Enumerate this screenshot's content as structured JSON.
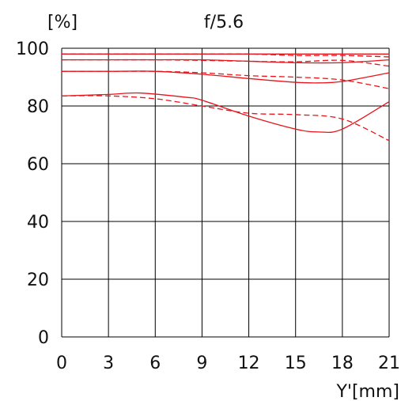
{
  "chart_data": {
    "type": "line",
    "title": "f/5.6",
    "ylabel": "[%]",
    "xlabel": "Y'[mm]",
    "xlim": [
      0,
      21
    ],
    "ylim": [
      0,
      100
    ],
    "xticks": [
      0,
      3,
      6,
      9,
      12,
      15,
      18,
      21
    ],
    "yticks": [
      0,
      20,
      40,
      60,
      80,
      100
    ],
    "grid": true,
    "line_color": "#e8141b",
    "grid_color": "#000000",
    "series": [
      {
        "style": "solid",
        "x": [
          0,
          3,
          6,
          9,
          12,
          15,
          18,
          21
        ],
        "y": [
          98,
          98,
          98,
          98,
          98,
          98,
          98,
          98
        ]
      },
      {
        "style": "dashed",
        "x": [
          0,
          3,
          6,
          9,
          12,
          15,
          18,
          21
        ],
        "y": [
          98,
          98,
          98,
          98,
          98,
          97.5,
          97.5,
          97
        ]
      },
      {
        "style": "solid",
        "x": [
          0,
          3,
          6,
          9,
          12,
          15,
          18,
          21
        ],
        "y": [
          96,
          96,
          96,
          96,
          95.5,
          95,
          95,
          96
        ]
      },
      {
        "style": "dashed",
        "x": [
          0,
          3,
          6,
          9,
          12,
          15,
          18,
          21
        ],
        "y": [
          96,
          96,
          96,
          95.8,
          95.5,
          95.3,
          95.8,
          93.8
        ]
      },
      {
        "style": "solid",
        "x": [
          0,
          3,
          6,
          9,
          12,
          15,
          16.5,
          18,
          21
        ],
        "y": [
          92,
          92,
          92,
          91,
          89.5,
          88.2,
          88,
          88.5,
          91.5
        ]
      },
      {
        "style": "dashed",
        "x": [
          0,
          3,
          6,
          9,
          12,
          15,
          18,
          21
        ],
        "y": [
          92,
          92,
          92,
          91.5,
          90.5,
          90,
          89,
          86
        ]
      },
      {
        "style": "solid",
        "x": [
          0,
          3,
          5,
          8,
          9,
          12,
          15,
          16.5,
          18,
          21
        ],
        "y": [
          83.5,
          84,
          84.5,
          83,
          82,
          76.5,
          72,
          71,
          72,
          81.5
        ]
      },
      {
        "style": "dashed",
        "x": [
          0,
          3,
          6,
          9,
          12,
          15,
          18,
          21
        ],
        "y": [
          83.5,
          83.5,
          82.5,
          80,
          77.5,
          77,
          75.5,
          68
        ]
      }
    ]
  }
}
